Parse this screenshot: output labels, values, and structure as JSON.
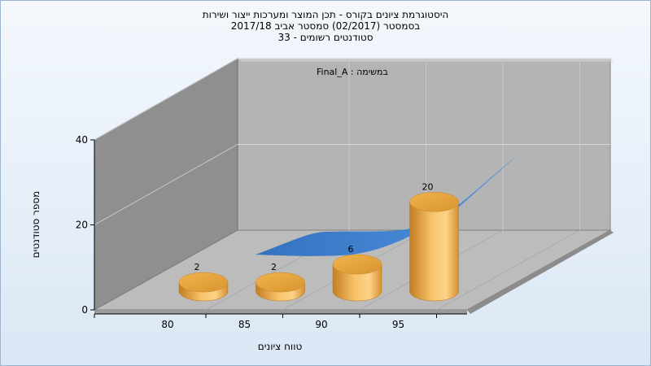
{
  "chart_data": {
    "type": "bar",
    "title_lines": [
      "היסטוגרמת ציונים בקורס - תכן המוצר ומערכות ייצור ושירות",
      "בסמסטר  (02/2017)  סמסטר אביב 2017/18",
      "סטודנטים רשומים - 33"
    ],
    "annotation": "במשימה : Final_A",
    "xlabel": "טווח ציונים",
    "ylabel": "מספר סטודנטים",
    "categories": [
      "80",
      "85",
      "90",
      "95"
    ],
    "values": [
      2,
      2,
      6,
      20
    ],
    "y_ticks": [
      0,
      20,
      40
    ],
    "ylim": [
      0,
      40
    ],
    "trend_line": {
      "style": "3d-ribbon",
      "color": "#3f86d8"
    },
    "bar_style": "3d-cylinder",
    "colors": {
      "bar": "#e8a640",
      "wall": "#a8a8a8",
      "floor": "#bcbcbc"
    }
  }
}
